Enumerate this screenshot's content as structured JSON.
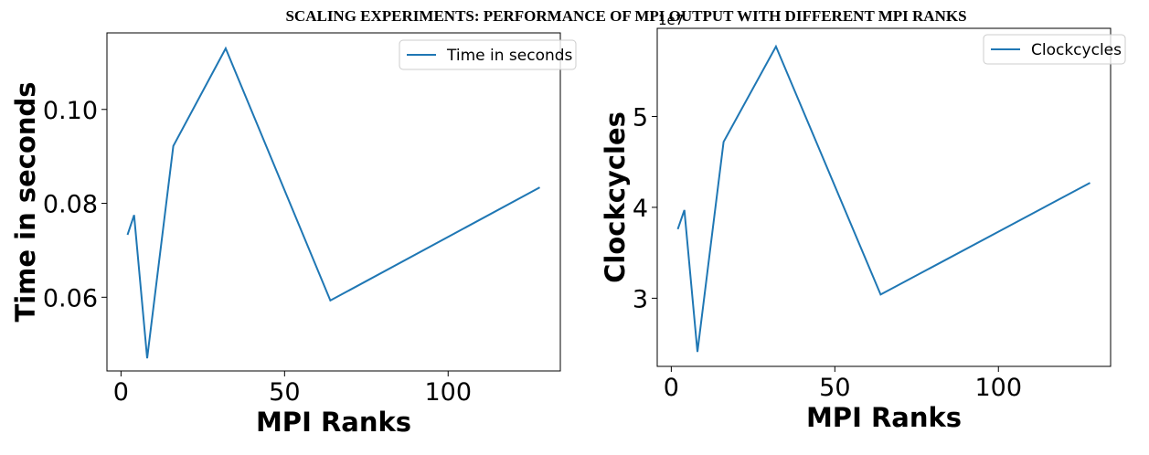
{
  "suptitle": "SCALING EXPERIMENTS: PERFORMANCE OF MPI OUTPUT WITH DIFFERENT MPI RANKS",
  "chart_data": [
    {
      "type": "line",
      "title": "",
      "xlabel": "MPI Ranks",
      "ylabel": "Time in seconds",
      "xlim": [
        -4.3,
        134.3
      ],
      "ylim": [
        0.0443,
        0.1163
      ],
      "x_ticks": [
        0,
        50,
        100
      ],
      "y_ticks": [
        0.06,
        0.08,
        0.1
      ],
      "y_tick_labels": [
        "0.06",
        "0.08",
        "0.10"
      ],
      "offset_label": "",
      "legend_position": "upper right",
      "series": [
        {
          "name": "Time in seconds",
          "color": "#1f77b4",
          "x": [
            2,
            4,
            8,
            16,
            32,
            64,
            128
          ],
          "y": [
            0.0733,
            0.0775,
            0.047,
            0.0922,
            0.113,
            0.0593,
            0.0834
          ]
        }
      ]
    },
    {
      "type": "line",
      "title": "",
      "xlabel": "MPI Ranks",
      "ylabel": "Clockcycles",
      "xlim": [
        -4.3,
        134.3
      ],
      "ylim": [
        2.25,
        5.97
      ],
      "x_ticks": [
        0,
        50,
        100
      ],
      "y_ticks": [
        3,
        4,
        5
      ],
      "y_tick_labels": [
        "3",
        "4",
        "5"
      ],
      "offset_label": "1e7",
      "legend_position": "upper right",
      "series": [
        {
          "name": "Clockcycles",
          "color": "#1f77b4",
          "x": [
            2,
            4,
            8,
            16,
            32,
            64,
            128
          ],
          "y": [
            3.76,
            3.97,
            2.41,
            4.72,
            5.77,
            3.04,
            4.27
          ]
        }
      ]
    }
  ]
}
